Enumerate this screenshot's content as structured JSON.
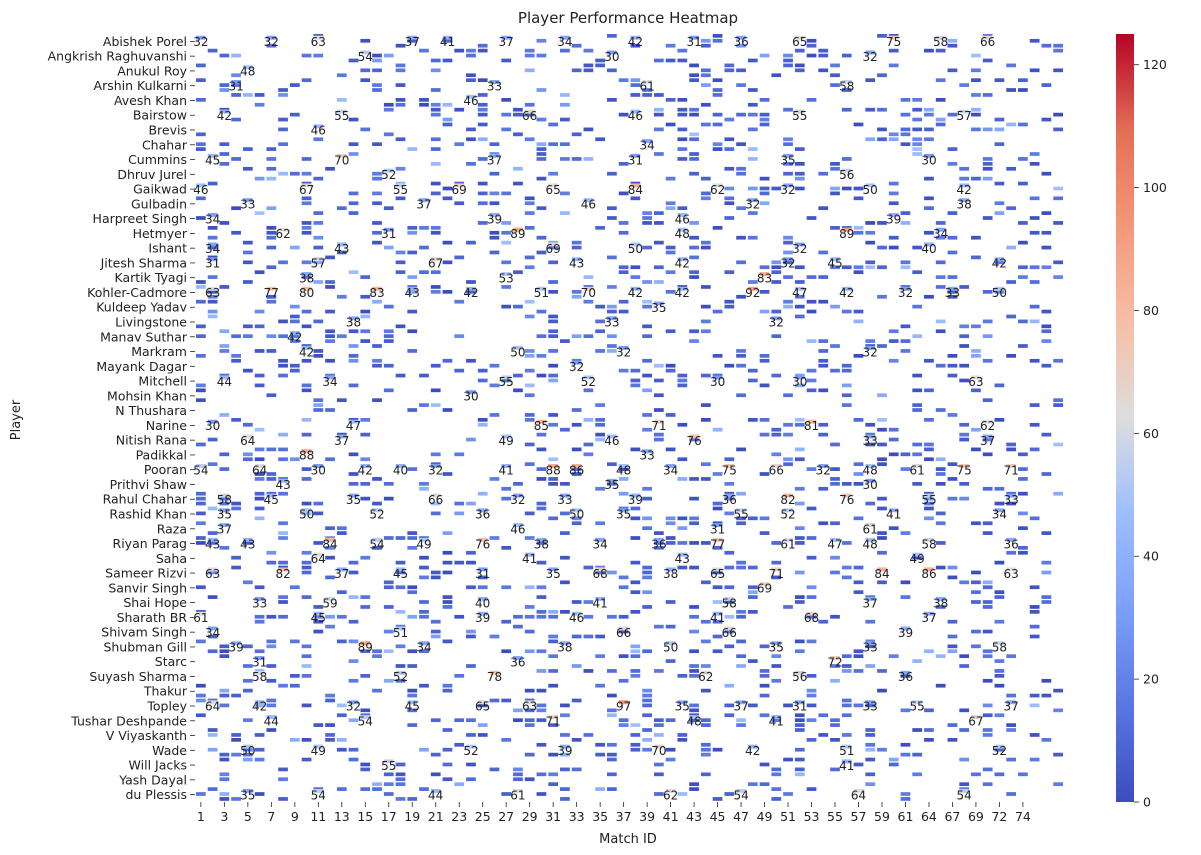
{
  "chart_data": {
    "type": "heatmap",
    "title": "Player Performance Heatmap",
    "xlabel": "Match ID",
    "ylabel": "Player",
    "x_tick_labels": [
      "1",
      "3",
      "5",
      "7",
      "9",
      "11",
      "13",
      "15",
      "17",
      "19",
      "21",
      "23",
      "25",
      "27",
      "29",
      "31",
      "33",
      "35",
      "37",
      "39",
      "41",
      "43",
      "45",
      "47",
      "49",
      "51",
      "53",
      "55",
      "57",
      "59",
      "61",
      "64",
      "67",
      "69",
      "72",
      "74"
    ],
    "y_tick_labels": [
      "Abishek Porel",
      "Angkrish Raghuvanshi",
      "Anukul Roy",
      "Arshin Kulkarni",
      "Avesh Khan",
      "Bairstow",
      "Brevis",
      "Chahar",
      "Cummins",
      "Dhruv Jurel",
      "Gaikwad",
      "Gulbadin",
      "Harpreet Singh",
      "Hetmyer",
      "Ishant",
      "Jitesh Sharma",
      "Kartik Tyagi",
      "Kohler-Cadmore",
      "Kuldeep Yadav",
      "Livingstone",
      "Manav Suthar",
      "Markram",
      "Mayank Dagar",
      "Mitchell",
      "Mohsin Khan",
      "N Thushara",
      "Narine",
      "Nitish Rana",
      "Padikkal",
      "Pooran",
      "Prithvi Shaw",
      "Rahul Chahar",
      "Rashid Khan",
      "Raza",
      "Riyan Parag",
      "Saha",
      "Sameer Rizvi",
      "Sanvir Singh",
      "Shai Hope",
      "Sharath BR",
      "Shivam Singh",
      "Shubman Gill",
      "Starc",
      "Suyash Sharma",
      "Thakur",
      "Topley",
      "Tushar Deshpande",
      "V Viyaskanth",
      "Wade",
      "Will Jacks",
      "Yash Dayal",
      "du Plessis"
    ],
    "colorbar": {
      "colormap": "coolwarm",
      "min": 0,
      "max": 125,
      "ticks": [
        0,
        20,
        40,
        60,
        80,
        100,
        120
      ]
    },
    "grid": false,
    "annotated_values_by_player": [
      {
        "player": "Abishek Porel",
        "values": [
          32,
          32,
          63,
          37,
          41,
          37,
          34,
          42,
          31,
          36,
          65,
          75,
          58,
          66
        ]
      },
      {
        "player": "Angkrish Raghuvanshi",
        "values": [
          54,
          30,
          32
        ]
      },
      {
        "player": "Anukul Roy",
        "values": [
          48
        ]
      },
      {
        "player": "Arshin Kulkarni",
        "values": [
          31,
          33,
          61,
          58
        ]
      },
      {
        "player": "Avesh Khan",
        "values": [
          46
        ]
      },
      {
        "player": "Bairstow",
        "values": [
          42,
          55,
          66,
          46,
          55,
          57
        ]
      },
      {
        "player": "Brevis",
        "values": [
          46
        ]
      },
      {
        "player": "Chahar",
        "values": [
          34
        ]
      },
      {
        "player": "Cummins",
        "values": [
          45,
          70,
          37,
          31,
          35,
          30
        ]
      },
      {
        "player": "Dhruv Jurel",
        "values": [
          52,
          56
        ]
      },
      {
        "player": "Gaikwad",
        "values": [
          46,
          67,
          55,
          69,
          65,
          84,
          62,
          32,
          50,
          42
        ]
      },
      {
        "player": "Gulbadin",
        "values": [
          33,
          37,
          46,
          32,
          38
        ]
      },
      {
        "player": "Harpreet Singh",
        "values": [
          34,
          39,
          46,
          39
        ]
      },
      {
        "player": "Hetmyer",
        "values": [
          62,
          31,
          89,
          48,
          89,
          34
        ]
      },
      {
        "player": "Ishant",
        "values": [
          34,
          43,
          69,
          50,
          32,
          40
        ]
      },
      {
        "player": "Jitesh Sharma",
        "values": [
          31,
          57,
          67,
          43,
          42,
          32,
          45,
          42
        ]
      },
      {
        "player": "Kartik Tyagi",
        "values": [
          38,
          53,
          83
        ]
      },
      {
        "player": "Kohler-Cadmore",
        "values": [
          63,
          77,
          80,
          83,
          43,
          42,
          51,
          70,
          42,
          42,
          92,
          47,
          42,
          32,
          33,
          50
        ]
      },
      {
        "player": "Kuldeep Yadav",
        "values": [
          35
        ]
      },
      {
        "player": "Livingstone",
        "values": [
          38,
          33,
          32
        ]
      },
      {
        "player": "Manav Suthar",
        "values": [
          42
        ]
      },
      {
        "player": "Markram",
        "values": [
          42,
          50,
          32,
          32
        ]
      },
      {
        "player": "Mayank Dagar",
        "values": [
          32
        ]
      },
      {
        "player": "Mitchell",
        "values": [
          44,
          34,
          55,
          52,
          30,
          30,
          63
        ]
      },
      {
        "player": "Mohsin Khan",
        "values": [
          30
        ]
      },
      {
        "player": "N Thushara",
        "values": []
      },
      {
        "player": "Narine",
        "values": [
          30,
          47,
          85,
          71,
          81,
          62
        ]
      },
      {
        "player": "Nitish Rana",
        "values": [
          64,
          37,
          49,
          46,
          76,
          33,
          37
        ]
      },
      {
        "player": "Padikkal",
        "values": [
          88,
          33
        ]
      },
      {
        "player": "Pooran",
        "values": [
          54,
          64,
          30,
          42,
          40,
          32,
          41,
          88,
          86,
          48,
          34,
          75,
          66,
          32,
          48,
          61,
          75,
          71
        ]
      },
      {
        "player": "Prithvi Shaw",
        "values": [
          43,
          35,
          30
        ]
      },
      {
        "player": "Rahul Chahar",
        "values": [
          58,
          45,
          35,
          66,
          32,
          33,
          39,
          36,
          82,
          76,
          55,
          33
        ]
      },
      {
        "player": "Rashid Khan",
        "values": [
          35,
          50,
          52,
          36,
          50,
          35,
          55,
          52,
          41,
          34
        ]
      },
      {
        "player": "Raza",
        "values": [
          37,
          46,
          31,
          61
        ]
      },
      {
        "player": "Riyan Parag",
        "values": [
          43,
          43,
          84,
          54,
          49,
          76,
          38,
          34,
          36,
          77,
          61,
          47,
          48,
          58,
          36
        ]
      },
      {
        "player": "Saha",
        "values": [
          64,
          41,
          43,
          49
        ]
      },
      {
        "player": "Sameer Rizvi",
        "values": [
          63,
          82,
          37,
          45,
          31,
          35,
          68,
          38,
          65,
          71,
          84,
          86,
          63
        ]
      },
      {
        "player": "Sanvir Singh",
        "values": [
          69
        ]
      },
      {
        "player": "Shai Hope",
        "values": [
          33,
          59,
          40,
          41,
          58,
          37,
          38
        ]
      },
      {
        "player": "Sharath BR",
        "values": [
          61,
          45,
          39,
          46,
          41,
          68,
          37
        ]
      },
      {
        "player": "Shivam Singh",
        "values": [
          34,
          51,
          66,
          66,
          39
        ]
      },
      {
        "player": "Shubman Gill",
        "values": [
          39,
          89,
          34,
          38,
          50,
          35,
          33,
          58
        ]
      },
      {
        "player": "Starc",
        "values": [
          31,
          36,
          72
        ]
      },
      {
        "player": "Suyash Sharma",
        "values": [
          58,
          52,
          78,
          62,
          56,
          36
        ]
      },
      {
        "player": "Thakur",
        "values": []
      },
      {
        "player": "Topley",
        "values": [
          64,
          42,
          32,
          45,
          65,
          63,
          97,
          35,
          37,
          31,
          33,
          55,
          37
        ]
      },
      {
        "player": "Tushar Deshpande",
        "values": [
          44,
          54,
          71,
          48,
          41,
          67
        ]
      },
      {
        "player": "V Viyaskanth",
        "values": []
      },
      {
        "player": "Wade",
        "values": [
          50,
          49,
          52,
          39,
          70,
          42,
          51,
          52
        ]
      },
      {
        "player": "Will Jacks",
        "values": [
          55,
          41
        ]
      },
      {
        "player": "Yash Dayal",
        "values": []
      },
      {
        "player": "du Plessis",
        "values": [
          35,
          54,
          44,
          61,
          62,
          54,
          64,
          54
        ]
      }
    ]
  }
}
